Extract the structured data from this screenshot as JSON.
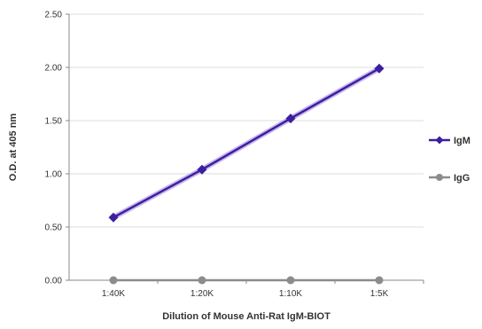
{
  "chart_data": {
    "type": "line",
    "categories": [
      "1:40K",
      "1:20K",
      "1:10K",
      "1:5K"
    ],
    "series": [
      {
        "name": "IgM",
        "values": [
          0.59,
          1.04,
          1.52,
          1.99
        ],
        "color": "#3b1fa0",
        "marker": "diamond"
      },
      {
        "name": "IgG",
        "values": [
          0.0,
          0.0,
          0.0,
          0.0
        ],
        "color": "#8c8c8c",
        "marker": "circle"
      }
    ],
    "ylabel": "O.D. at 405 nm",
    "xlabel": "Dilution of Mouse Anti-Rat IgM-BIOT",
    "ylim": [
      0,
      2.5
    ],
    "yticks": [
      "0.00",
      "0.50",
      "1.00",
      "1.50",
      "2.00",
      "2.50"
    ],
    "grid": true,
    "legend": "right"
  }
}
